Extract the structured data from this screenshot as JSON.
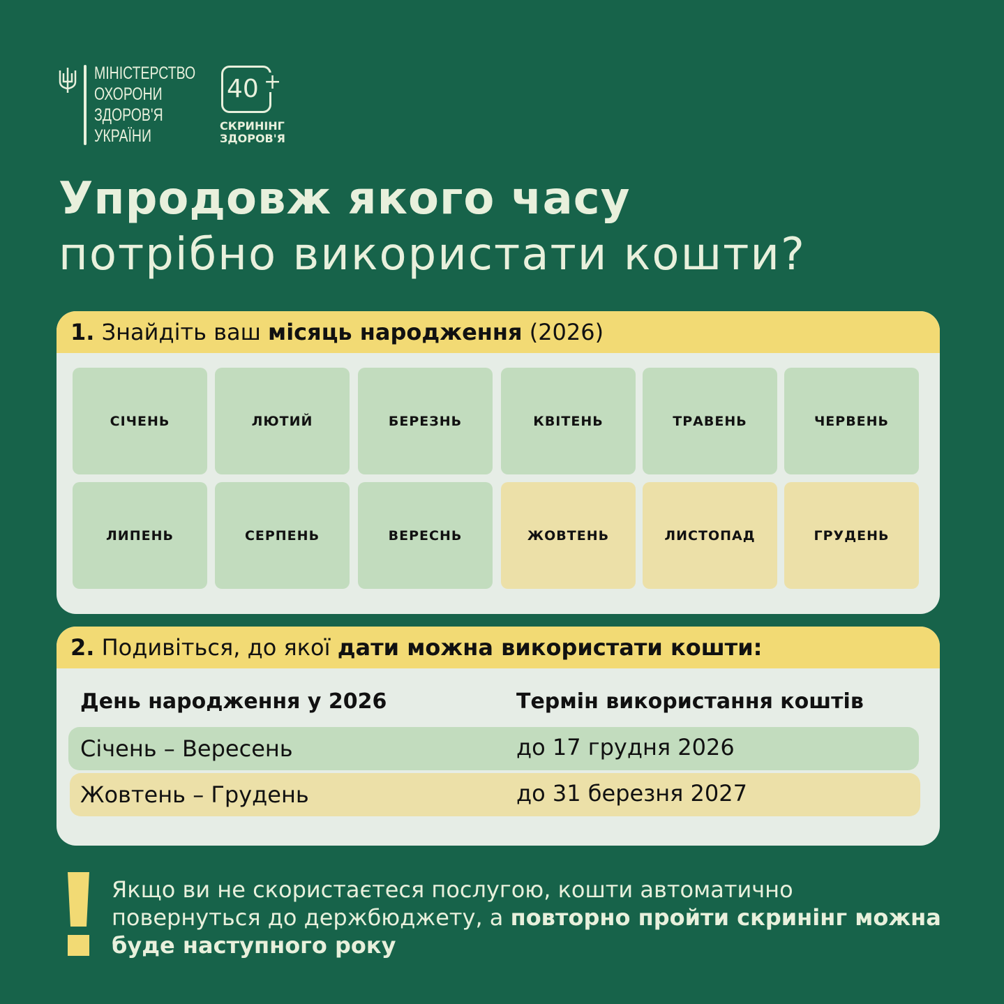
{
  "logo": {
    "ministry_lines": [
      "МІНІСТЕРСТВО",
      "ОХОРОНИ",
      "ЗДОРОВ'Я",
      "УКРАЇНИ"
    ],
    "badge": "40",
    "badge_plus": "+",
    "screening_lines": [
      "СКРИНІНГ",
      "ЗДОРОВ'Я"
    ]
  },
  "title": {
    "line1": "Упродовж якого часу",
    "line2": "потрібно використати кошти?"
  },
  "step1": {
    "number": "1.",
    "text_pre": "Знайдіть ваш ",
    "text_bold": "місяць народження",
    "text_post": " (2026)",
    "months": [
      "СІЧЕНЬ",
      "ЛЮТИЙ",
      "БЕРЕЗНЬ",
      "КВІТЕНЬ",
      "ТРАВЕНЬ",
      "ЧЕРВЕНЬ",
      "ЛИПЕНЬ",
      "СЕРПЕНЬ",
      "ВЕРЕСНЬ",
      "ЖОВТЕНЬ",
      "ЛИСТОПАД",
      "ГРУДЕНЬ"
    ]
  },
  "step2": {
    "number": "2.",
    "text_pre": "Подивіться, до якої ",
    "text_bold": "дати можна використати кошти:",
    "col1": "День народження у 2026",
    "col2": "Термін використання коштів",
    "rows": [
      {
        "period": "Січень – Вересень",
        "deadline": "до 17 грудня 2026"
      },
      {
        "period": "Жовтень – Грудень",
        "deadline": "до 31 березня 2027"
      }
    ]
  },
  "note": {
    "text_pre": "Якщо ви не скористаєтеся послугою, кошти автоматично повернуться до держбюджету, а ",
    "text_bold": "повторно пройти скринінг можна буде наступного року"
  },
  "colors": {
    "background": "#17634a",
    "header_yellow": "#f2da74",
    "panel": "#e6ede6",
    "early_months": "#c2dcbe",
    "late_months": "#ece0a8"
  }
}
